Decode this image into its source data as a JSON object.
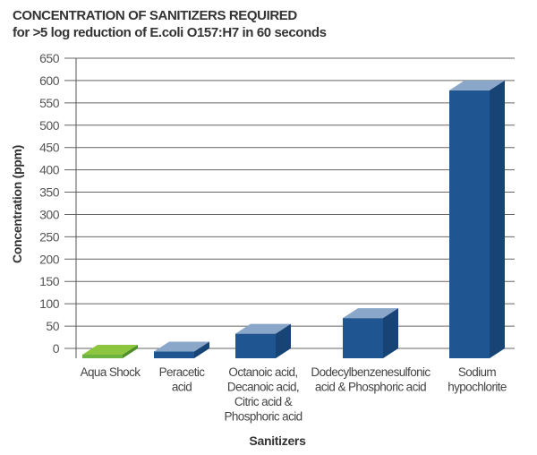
{
  "chart_data": {
    "type": "bar",
    "title": "CONCENTRATION OF SANITIZERS REQUIRED",
    "subtitle": "for >5 log reduction of E.coli O157:H7 in 60 seconds",
    "xlabel": "Sanitizers",
    "ylabel": "Concentration (ppm)",
    "ylim": [
      0,
      650
    ],
    "yticks": [
      0,
      50,
      100,
      150,
      200,
      250,
      300,
      350,
      400,
      450,
      500,
      550,
      600,
      650
    ],
    "grid": true,
    "style": "3d-bar",
    "categories": [
      [
        "Aqua Shock"
      ],
      [
        "Peracetic",
        "acid"
      ],
      [
        "Octanoic acid,",
        "Decanoic acid,",
        "Citric acid &",
        "Phosphoric acid"
      ],
      [
        "Dodecylbenzenesulfonic",
        "acid & Phosphoric acid"
      ],
      [
        "Sodium",
        "hypochlorite"
      ]
    ],
    "values": [
      0,
      15,
      55,
      90,
      600
    ],
    "colors": [
      "#6db33f",
      "#1f5590",
      "#1f5590",
      "#1f5590",
      "#1f5590"
    ],
    "top_colors": [
      "#8cc63f",
      "#8aa6c8",
      "#8aa6c8",
      "#8aa6c8",
      "#8aa6c8"
    ],
    "side_colors": [
      "#4f8f2a",
      "#174475",
      "#174475",
      "#174475",
      "#174475"
    ]
  }
}
